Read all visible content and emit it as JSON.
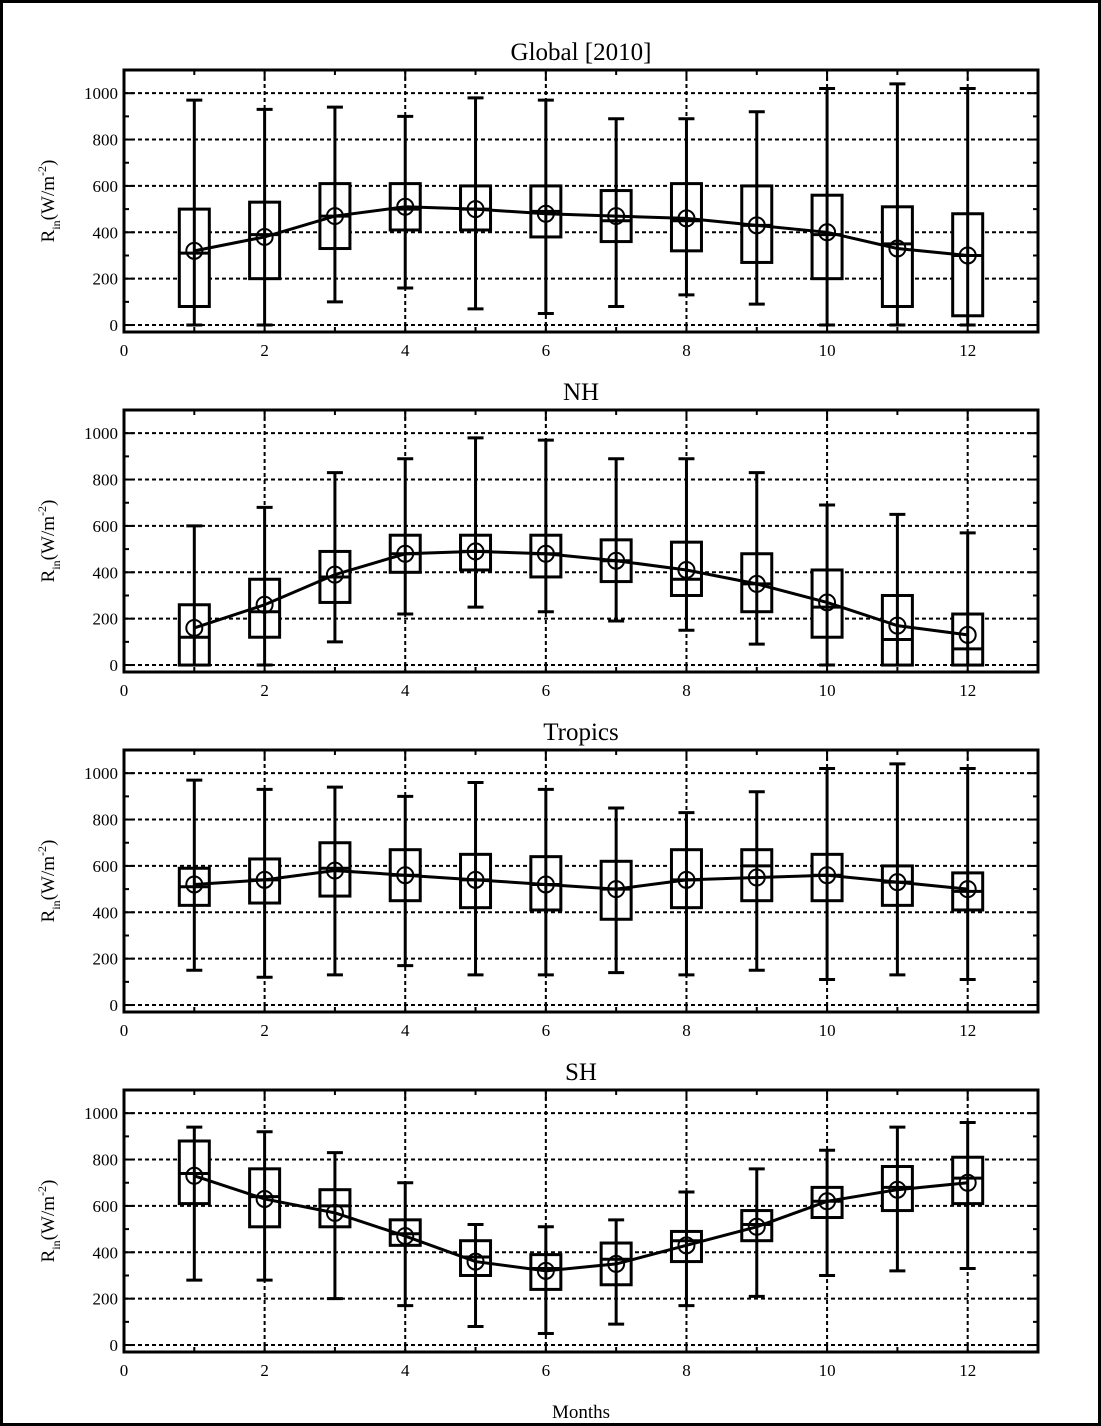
{
  "figure": {
    "x_axis_label": "Months",
    "y_axis_label": "R",
    "y_axis_subscript": "in",
    "y_axis_units": "(W/m",
    "y_axis_units_exp": "-2",
    "y_axis_units_close": ")"
  },
  "chart_data": [
    {
      "type": "box",
      "title": "Global    [2010]",
      "xlabel": "",
      "ylabel": "Rin (W/m-2)",
      "xlim": [
        0,
        13
      ],
      "ylim": [
        -30,
        1100
      ],
      "xticks": [
        0,
        2,
        4,
        6,
        8,
        10,
        12
      ],
      "yticks": [
        0,
        200,
        400,
        600,
        800,
        1000
      ],
      "grid": true,
      "months": [
        1,
        2,
        3,
        4,
        5,
        6,
        7,
        8,
        9,
        10,
        11,
        12
      ],
      "min": [
        0,
        0,
        100,
        160,
        70,
        50,
        80,
        130,
        90,
        0,
        0,
        0
      ],
      "q1": [
        80,
        200,
        330,
        410,
        410,
        380,
        360,
        320,
        270,
        200,
        80,
        40
      ],
      "median": [
        310,
        390,
        470,
        500,
        500,
        490,
        450,
        450,
        430,
        390,
        350,
        300
      ],
      "q3": [
        500,
        530,
        610,
        610,
        600,
        600,
        580,
        610,
        600,
        560,
        510,
        480
      ],
      "max": [
        970,
        930,
        940,
        900,
        980,
        970,
        890,
        890,
        920,
        1020,
        1040,
        1020
      ],
      "mean": [
        320,
        380,
        470,
        510,
        500,
        480,
        470,
        460,
        430,
        400,
        330,
        300
      ]
    },
    {
      "type": "box",
      "title": "NH",
      "xlabel": "",
      "ylabel": "Rin (W/m-2)",
      "xlim": [
        0,
        13
      ],
      "ylim": [
        -30,
        1100
      ],
      "xticks": [
        0,
        2,
        4,
        6,
        8,
        10,
        12
      ],
      "yticks": [
        0,
        200,
        400,
        600,
        800,
        1000
      ],
      "grid": true,
      "months": [
        1,
        2,
        3,
        4,
        5,
        6,
        7,
        8,
        9,
        10,
        11,
        12
      ],
      "min": [
        0,
        0,
        100,
        220,
        250,
        230,
        190,
        150,
        90,
        0,
        0,
        0
      ],
      "q1": [
        0,
        120,
        270,
        400,
        410,
        380,
        360,
        300,
        230,
        120,
        0,
        0
      ],
      "median": [
        120,
        230,
        380,
        480,
        490,
        480,
        450,
        370,
        350,
        250,
        110,
        70
      ],
      "q3": [
        260,
        370,
        490,
        560,
        560,
        560,
        540,
        530,
        480,
        410,
        300,
        220
      ],
      "max": [
        600,
        680,
        830,
        890,
        980,
        970,
        890,
        890,
        830,
        690,
        650,
        570
      ],
      "mean": [
        160,
        260,
        390,
        480,
        490,
        480,
        450,
        410,
        350,
        270,
        170,
        130
      ]
    },
    {
      "type": "box",
      "title": "Tropics",
      "xlabel": "",
      "ylabel": "Rin (W/m-2)",
      "xlim": [
        0,
        13
      ],
      "ylim": [
        -30,
        1100
      ],
      "xticks": [
        0,
        2,
        4,
        6,
        8,
        10,
        12
      ],
      "yticks": [
        0,
        200,
        400,
        600,
        800,
        1000
      ],
      "grid": true,
      "months": [
        1,
        2,
        3,
        4,
        5,
        6,
        7,
        8,
        9,
        10,
        11,
        12
      ],
      "min": [
        150,
        120,
        130,
        170,
        130,
        130,
        140,
        130,
        150,
        110,
        130,
        110
      ],
      "q1": [
        430,
        440,
        470,
        450,
        420,
        410,
        370,
        420,
        450,
        450,
        430,
        410
      ],
      "median": [
        510,
        540,
        590,
        560,
        540,
        520,
        500,
        540,
        600,
        560,
        530,
        490
      ],
      "q3": [
        590,
        630,
        700,
        670,
        650,
        640,
        620,
        670,
        670,
        650,
        600,
        570
      ],
      "max": [
        970,
        930,
        940,
        900,
        960,
        930,
        850,
        830,
        920,
        1020,
        1040,
        1020
      ],
      "mean": [
        520,
        540,
        580,
        560,
        540,
        520,
        500,
        540,
        550,
        560,
        530,
        500
      ]
    },
    {
      "type": "box",
      "title": "SH",
      "xlabel": "Months",
      "ylabel": "Rin (W/m-2)",
      "xlim": [
        0,
        13
      ],
      "ylim": [
        -30,
        1100
      ],
      "xticks": [
        0,
        2,
        4,
        6,
        8,
        10,
        12
      ],
      "yticks": [
        0,
        200,
        400,
        600,
        800,
        1000
      ],
      "grid": true,
      "months": [
        1,
        2,
        3,
        4,
        5,
        6,
        7,
        8,
        9,
        10,
        11,
        12
      ],
      "min": [
        280,
        280,
        200,
        170,
        80,
        50,
        90,
        170,
        210,
        300,
        320,
        330
      ],
      "q1": [
        610,
        510,
        510,
        430,
        300,
        240,
        260,
        360,
        450,
        550,
        580,
        610
      ],
      "median": [
        740,
        640,
        600,
        480,
        380,
        330,
        370,
        450,
        520,
        620,
        680,
        720
      ],
      "q3": [
        880,
        760,
        670,
        540,
        450,
        390,
        440,
        490,
        580,
        680,
        770,
        810
      ],
      "max": [
        940,
        920,
        830,
        700,
        520,
        510,
        540,
        660,
        760,
        840,
        940,
        960
      ],
      "mean": [
        730,
        630,
        570,
        470,
        360,
        320,
        350,
        430,
        510,
        620,
        670,
        700
      ]
    }
  ]
}
